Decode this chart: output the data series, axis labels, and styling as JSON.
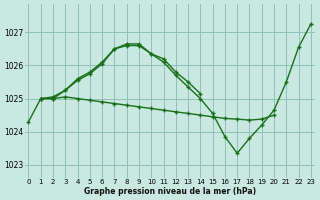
{
  "title": "Graphe pression niveau de la mer (hPa)",
  "bg_color": "#c8e8e0",
  "grid_color": "#90c0b8",
  "line_color": "#1a6e1a",
  "ylim": [
    1022.6,
    1027.85
  ],
  "xlim": [
    -0.3,
    23.3
  ],
  "yticks": [
    1023,
    1024,
    1025,
    1026,
    1027
  ],
  "xticks": [
    0,
    1,
    2,
    3,
    4,
    5,
    6,
    7,
    8,
    9,
    10,
    11,
    12,
    13,
    14,
    15,
    16,
    17,
    18,
    19,
    20,
    21,
    22,
    23
  ],
  "line1_x": [
    0,
    1,
    2,
    3,
    4,
    5,
    6,
    7,
    8,
    9,
    10,
    11,
    12,
    13,
    14
  ],
  "line1_y": [
    1024.3,
    1025.0,
    1025.05,
    1025.25,
    1025.6,
    1025.8,
    1026.1,
    1026.5,
    1026.65,
    1026.65,
    1026.35,
    1026.2,
    1025.8,
    1025.5,
    1025.15
  ],
  "line2_x": [
    1,
    2,
    3,
    4,
    5,
    6,
    7,
    8,
    9,
    10,
    11,
    12,
    13,
    14,
    15,
    16,
    17,
    18,
    19,
    20,
    21,
    22,
    23
  ],
  "line2_y": [
    1025.0,
    1025.0,
    1025.25,
    1025.55,
    1025.75,
    1026.05,
    1026.5,
    1026.6,
    1026.6,
    1026.35,
    1026.1,
    1025.7,
    1025.35,
    1025.0,
    1024.55,
    1023.85,
    1023.35,
    1023.8,
    1024.2,
    1024.65,
    1025.5,
    1026.55,
    1027.25
  ],
  "line3_x": [
    1,
    2,
    3,
    4,
    5,
    6,
    7,
    8,
    9,
    10,
    11,
    12,
    13,
    14,
    15,
    16,
    17,
    18,
    19,
    20
  ],
  "line3_y": [
    1025.0,
    1025.0,
    1025.05,
    1025.0,
    1024.95,
    1024.9,
    1024.85,
    1024.8,
    1024.75,
    1024.7,
    1024.65,
    1024.6,
    1024.55,
    1024.5,
    1024.45,
    1024.4,
    1024.38,
    1024.35,
    1024.38,
    1024.5
  ]
}
